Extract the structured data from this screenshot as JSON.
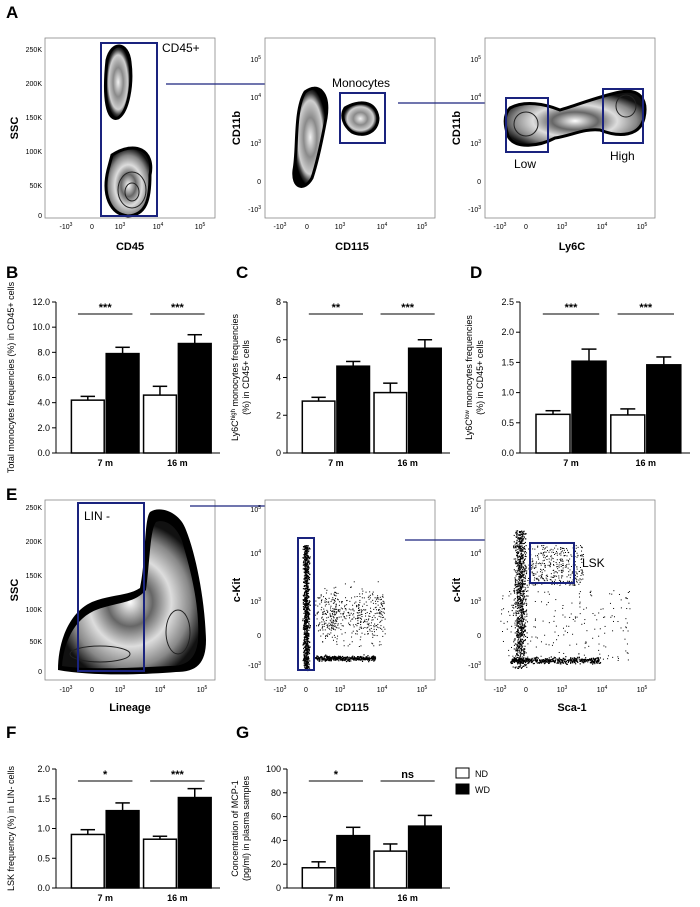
{
  "panels": {
    "A": {
      "label": "A",
      "plot1": {
        "xlabel": "CD45",
        "ylabel": "SSC",
        "gate": "CD45+",
        "yticks": [
          "250K",
          "200K",
          "150K",
          "100K",
          "50K",
          "0"
        ],
        "xticks": [
          "-10",
          "3",
          "0",
          "10",
          "3",
          "10",
          "4",
          "10",
          "5"
        ]
      },
      "plot2": {
        "xlabel": "CD115",
        "ylabel": "CD11b",
        "gate": "Monocytes"
      },
      "plot3": {
        "xlabel": "Ly6C",
        "ylabel": "CD11b",
        "gate_low": "Low",
        "gate_high": "High"
      }
    },
    "B": {
      "label": "B"
    },
    "C": {
      "label": "C"
    },
    "D": {
      "label": "D"
    },
    "E": {
      "label": "E",
      "plot1": {
        "xlabel": "Lineage",
        "ylabel": "SSC",
        "gate": "LIN -"
      },
      "plot2": {
        "xlabel": "CD115",
        "ylabel": "c-Kit"
      },
      "plot3": {
        "xlabel": "Sca-1",
        "ylabel": "c-Kit",
        "gate": "LSK"
      }
    },
    "F": {
      "label": "F"
    },
    "G": {
      "label": "G"
    }
  },
  "flow_ticks": {
    "log_y": [
      "10",
      "5",
      "10",
      "4",
      "10",
      "3",
      "0",
      "-10",
      "3"
    ],
    "log_x": [
      "-10",
      "3",
      "0",
      "10",
      "3",
      "10",
      "4",
      "10",
      "5"
    ],
    "ssc_y": [
      "250K",
      "200K",
      "150K",
      "100K",
      "50K",
      "0"
    ]
  },
  "legend": {
    "nd": "ND",
    "wd": "WD"
  },
  "colors": {
    "nd": "#ffffff",
    "wd": "#000000",
    "gate": "#1a237e"
  },
  "chart_data": [
    {
      "id": "B",
      "type": "bar",
      "ylabel": "Total monocytes frequencies (%) in CD45+ cells",
      "categories": [
        "7 m",
        "16 m"
      ],
      "ylim": [
        0,
        12
      ],
      "yticks": [
        "0.0",
        "2.0",
        "4.0",
        "6.0",
        "8.0",
        "10.0",
        "12.0"
      ],
      "series": [
        {
          "name": "ND",
          "values": [
            4.2,
            4.6
          ],
          "errors": [
            0.3,
            0.7
          ]
        },
        {
          "name": "WD",
          "values": [
            7.9,
            8.7
          ],
          "errors": [
            0.5,
            0.7
          ]
        }
      ],
      "significance": [
        "***",
        "***"
      ]
    },
    {
      "id": "C",
      "type": "bar",
      "ylabel_main": "Ly6C",
      "ylabel_sup": "high",
      "ylabel_rest": " monocytes frequencies",
      "ylabel_line2": "(%) in CD45+ cells",
      "categories": [
        "7 m",
        "16 m"
      ],
      "ylim": [
        0,
        8
      ],
      "yticks": [
        "0",
        "2",
        "4",
        "6",
        "8"
      ],
      "series": [
        {
          "name": "ND",
          "values": [
            2.75,
            3.2
          ],
          "errors": [
            0.2,
            0.5
          ]
        },
        {
          "name": "WD",
          "values": [
            4.6,
            5.55
          ],
          "errors": [
            0.25,
            0.45
          ]
        }
      ],
      "significance": [
        "**",
        "***"
      ]
    },
    {
      "id": "D",
      "type": "bar",
      "ylabel_main": "Ly6C",
      "ylabel_sup": "low",
      "ylabel_rest": " monocytes frequencies",
      "ylabel_line2": "(%) in CD45+ cells",
      "categories": [
        "7 m",
        "16 m"
      ],
      "ylim": [
        0,
        2.5
      ],
      "yticks": [
        "0.0",
        "0.5",
        "1.0",
        "1.5",
        "2.0",
        "2.5"
      ],
      "series": [
        {
          "name": "ND",
          "values": [
            0.64,
            0.63
          ],
          "errors": [
            0.06,
            0.1
          ]
        },
        {
          "name": "WD",
          "values": [
            1.52,
            1.46
          ],
          "errors": [
            0.2,
            0.13
          ]
        }
      ],
      "significance": [
        "***",
        "***"
      ]
    },
    {
      "id": "F",
      "type": "bar",
      "ylabel": "LSK frequency (%) in LIN- cells",
      "categories": [
        "7 m",
        "16 m"
      ],
      "ylim": [
        0,
        2
      ],
      "yticks": [
        "0.0",
        "0.5",
        "1.0",
        "1.5",
        "2.0"
      ],
      "series": [
        {
          "name": "ND",
          "values": [
            0.9,
            0.82
          ],
          "errors": [
            0.08,
            0.05
          ]
        },
        {
          "name": "WD",
          "values": [
            1.3,
            1.52
          ],
          "errors": [
            0.13,
            0.15
          ]
        }
      ],
      "significance": [
        "*",
        "***"
      ]
    },
    {
      "id": "G",
      "type": "bar",
      "ylabel_line1": "Concentration of MCP-1",
      "ylabel_line2": "(pg/ml) in plasma samples",
      "categories": [
        "7 m",
        "16 m"
      ],
      "ylim": [
        0,
        100
      ],
      "yticks": [
        "0",
        "20",
        "40",
        "60",
        "80",
        "100"
      ],
      "series": [
        {
          "name": "ND",
          "values": [
            17,
            31
          ],
          "errors": [
            5,
            6
          ]
        },
        {
          "name": "WD",
          "values": [
            44,
            52
          ],
          "errors": [
            7,
            9
          ]
        }
      ],
      "significance": [
        "*",
        "ns"
      ]
    }
  ]
}
